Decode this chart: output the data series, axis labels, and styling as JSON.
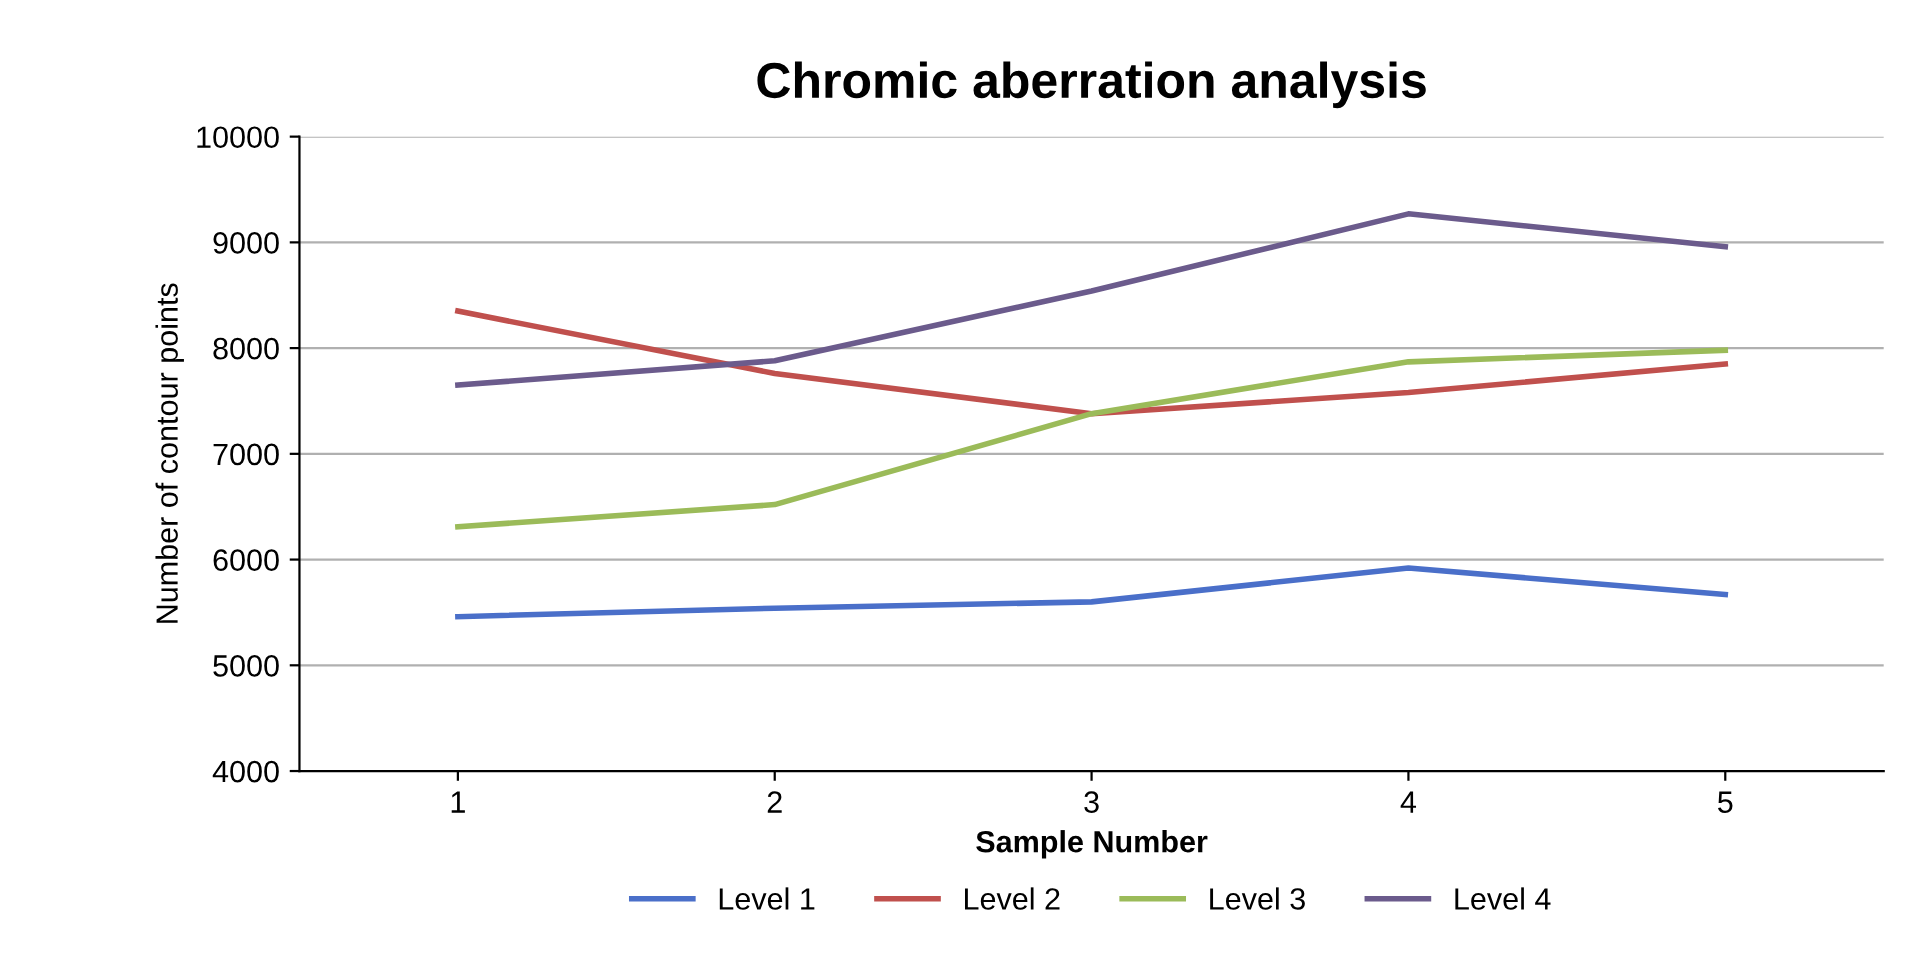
{
  "chart_data": {
    "type": "line",
    "title": "Chromic aberration analysis",
    "xlabel": "Sample Number",
    "ylabel": "Number of contour points",
    "categories": [
      "1",
      "2",
      "3",
      "4",
      "5"
    ],
    "series": [
      {
        "name": "Level 1",
        "color": "#4a6fc9",
        "values": [
          5460,
          5540,
          5600,
          5920,
          5670
        ]
      },
      {
        "name": "Level 2",
        "color": "#c0504d",
        "values": [
          8350,
          7760,
          7380,
          7580,
          7850
        ]
      },
      {
        "name": "Level 3",
        "color": "#9bbb59",
        "values": [
          6310,
          6520,
          7380,
          7870,
          7980
        ]
      },
      {
        "name": "Level 4",
        "color": "#6b5b8c",
        "values": [
          7650,
          7880,
          8540,
          9270,
          8960
        ]
      }
    ],
    "ylim": [
      4000,
      10000
    ],
    "yticks": [
      4000,
      5000,
      6000,
      7000,
      8000,
      9000,
      10000
    ],
    "grid": "y",
    "legend": "bottom",
    "marker": "none",
    "line_style": "solid"
  }
}
